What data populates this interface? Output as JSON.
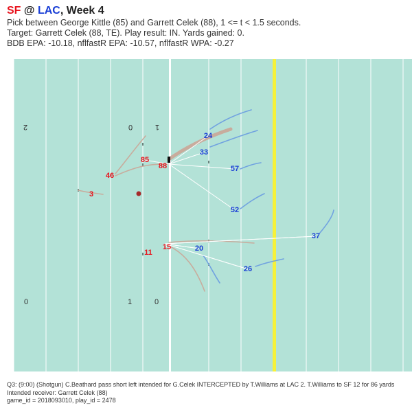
{
  "header": {
    "away_team": "SF",
    "at_sign": "@",
    "home_team": "LAC",
    "week_text": ", Week 4",
    "line1": "Pick between George Kittle (85) and Garrett Celek (88), 1 <= t < 1.5 seconds.",
    "line2": "Target: Garrett Celek (88, TE). Play result: IN. Yards gained: 0.",
    "line3": "BDB EPA: -10.18, nflfastR EPA: -10.57, nflfastR WPA: -0.27"
  },
  "field": {
    "yard_numbers": [
      {
        "id": "left-top-2",
        "text": "2"
      },
      {
        "id": "left-top-0",
        "text": "0"
      },
      {
        "id": "left-top-1",
        "text": "1"
      },
      {
        "id": "left-bottom-0",
        "text": "0"
      },
      {
        "id": "left-bottom-1",
        "text": "1"
      },
      {
        "id": "left-bottom-0b",
        "text": "0"
      }
    ],
    "colors": {
      "turf": "#b3e2d7",
      "line_of_scrimmage": "#ffffff",
      "first_down_line": "#f6f13a",
      "offense": "#e8101a",
      "defense": "#1a3fd6",
      "offense_track": "#c9a99a",
      "defense_track": "#6d9ee0",
      "pass_line": "#ffffff",
      "ball": "#a52a2a"
    }
  },
  "players": [
    {
      "team": "offense",
      "jersey": "85"
    },
    {
      "team": "offense",
      "jersey": "88"
    },
    {
      "team": "offense",
      "jersey": "46"
    },
    {
      "team": "offense",
      "jersey": "3"
    },
    {
      "team": "offense",
      "jersey": "15"
    },
    {
      "team": "offense",
      "jersey": "11"
    },
    {
      "team": "defense",
      "jersey": "24"
    },
    {
      "team": "defense",
      "jersey": "33"
    },
    {
      "team": "defense",
      "jersey": "57"
    },
    {
      "team": "defense",
      "jersey": "52"
    },
    {
      "team": "defense",
      "jersey": "37"
    },
    {
      "team": "defense",
      "jersey": "20"
    },
    {
      "team": "defense",
      "jersey": "26"
    }
  ],
  "footer": {
    "line1": "Q3: (9:00) (Shotgun) C.Beathard pass short left intended for G.Celek INTERCEPTED by T.Williams at LAC 2. T.Williams to SF 12 for 86 yards",
    "line2": "Intended receiver: Garrett Celek (88)",
    "line3": "game_id = 2018093010, play_id = 2478"
  }
}
